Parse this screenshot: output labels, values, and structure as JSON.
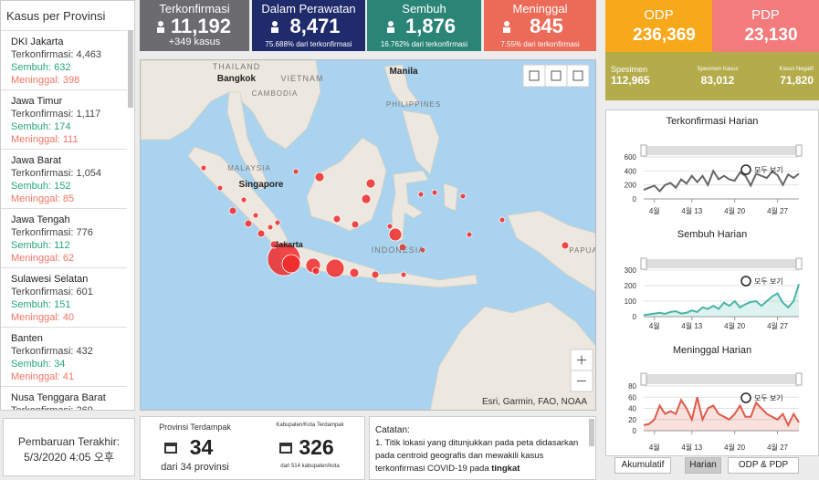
{
  "sidebar": {
    "title": "Kasus per Provinsi",
    "provinces": [
      {
        "name": "DKI Jakarta",
        "confirmed": "Terkonfirmasi: 4,463",
        "recovered": "Sembuh: 632",
        "deaths": "Meninggal: 398"
      },
      {
        "name": "Jawa Timur",
        "confirmed": "Terkonfirmasi: 1,117",
        "recovered": "Sembuh: 174",
        "deaths": "Meninggal: 111"
      },
      {
        "name": "Jawa Barat",
        "confirmed": "Terkonfirmasi: 1,054",
        "recovered": "Sembuh: 152",
        "deaths": "Meninggal: 85"
      },
      {
        "name": "Jawa Tengah",
        "confirmed": "Terkonfirmasi: 776",
        "recovered": "Sembuh: 112",
        "deaths": "Meninggal: 62"
      },
      {
        "name": "Sulawesi Selatan",
        "confirmed": "Terkonfirmasi: 601",
        "recovered": "Sembuh: 151",
        "deaths": "Meninggal: 40"
      },
      {
        "name": "Banten",
        "confirmed": "Terkonfirmasi: 432",
        "recovered": "Sembuh: 34",
        "deaths": "Meninggal: 41"
      },
      {
        "name": "Nusa Tenggara Barat",
        "confirmed": "Terkonfirmasi: 269"
      }
    ]
  },
  "update": {
    "label": "Pembaruan Terakhir:",
    "datetime": "5/3/2020 4:05 오후"
  },
  "stats": [
    {
      "label": "Terkonfirmasi",
      "value": "11,192",
      "sub": "+349 kasus"
    },
    {
      "label": "Dalam Perawatan",
      "value": "8,471",
      "sub": "75.688% dari terkonfirmasi"
    },
    {
      "label": "Sembuh",
      "value": "1,876",
      "sub": "16.762% dari terkonfirmasi"
    },
    {
      "label": "Meninggal",
      "value": "845",
      "sub": "7.55% dari terkonfirmasi"
    }
  ],
  "monitoring": [
    {
      "label": "ODP",
      "value": "236,369"
    },
    {
      "label": "PDP",
      "value": "23,130"
    }
  ],
  "specimens": [
    {
      "label": "Spesimen",
      "value": "112,965"
    },
    {
      "label": "Spesimen Kasus",
      "value": "83,012"
    },
    {
      "label": "Kasus Negatif",
      "value": "71,820"
    }
  ],
  "map": {
    "labels": [
      "THAILAND",
      "Bangkok",
      "VIETNAM",
      "CAMBODIA",
      "Manila",
      "PHILIPPINES",
      "MALAYSIA",
      "Singapore",
      "INDONESIA",
      "PAPUA",
      "Jakarta"
    ],
    "attribution": "Esri, Garmin, FAO, NOAA"
  },
  "affected": [
    {
      "label": "Provinsi Terdampak",
      "value": "34",
      "sub": "dari 34 provinsi"
    },
    {
      "label": "Kabupaten/Kota Terdampak",
      "value": "326",
      "sub": "dari 514 kabupaten/kota"
    }
  ],
  "notes": {
    "title": "Catatan:",
    "body": "1. Titik lokasi yang ditunjukkan pada peta didasarkan pada centroid geografis dan mewakili kasus terkonfirmasi COVID-19 pada",
    "bold": "tingkat"
  },
  "tabs": [
    "Akumulatif",
    "Harian",
    "ODP & PDP"
  ],
  "chart_data": [
    {
      "type": "line",
      "title": "Terkonfirmasi Harian",
      "color": "#666666",
      "zoom_label": "모두 보기",
      "values": [
        130,
        160,
        190,
        110,
        200,
        230,
        160,
        280,
        220,
        330,
        240,
        330,
        200,
        400,
        280,
        330,
        280,
        260,
        380,
        330,
        190,
        360,
        330,
        300,
        390,
        340,
        200,
        350,
        300,
        360
      ],
      "xlim": [
        0,
        29
      ],
      "xticks": [
        {
          "value": 2,
          "label": "4월"
        },
        {
          "value": 9,
          "label": "4월 13"
        },
        {
          "value": 17,
          "label": "4월 20"
        },
        {
          "value": 25,
          "label": "4월 27"
        }
      ],
      "ylim": [
        0,
        600
      ],
      "yticks": [
        0,
        200,
        400,
        600
      ],
      "grid": true
    },
    {
      "type": "line",
      "title": "Sembuh Harian",
      "color": "#47b5a7",
      "zoom_label": "모두 보기",
      "values": [
        10,
        15,
        20,
        25,
        18,
        30,
        35,
        20,
        25,
        40,
        30,
        60,
        50,
        70,
        50,
        90,
        70,
        100,
        60,
        80,
        95,
        100,
        70,
        100,
        130,
        150,
        90,
        60,
        100,
        210
      ],
      "xlim": [
        0,
        29
      ],
      "xticks": [
        {
          "value": 2,
          "label": "4월"
        },
        {
          "value": 9,
          "label": "4월 13"
        },
        {
          "value": 17,
          "label": "4월 20"
        },
        {
          "value": 25,
          "label": "4월 27"
        }
      ],
      "ylim": [
        0,
        300
      ],
      "yticks": [
        0,
        100,
        200,
        300
      ],
      "grid": true
    },
    {
      "type": "line",
      "title": "Meninggal Harian",
      "color": "#e05a4a",
      "zoom_label": "모두 보기",
      "values": [
        10,
        12,
        20,
        45,
        30,
        35,
        30,
        55,
        40,
        20,
        60,
        20,
        40,
        45,
        30,
        25,
        20,
        30,
        45,
        25,
        25,
        50,
        40,
        30,
        25,
        20,
        30,
        10,
        30,
        15
      ],
      "xlim": [
        0,
        29
      ],
      "xticks": [
        {
          "value": 2,
          "label": "4월"
        },
        {
          "value": 9,
          "label": "4월 13"
        },
        {
          "value": 17,
          "label": "4월 20"
        },
        {
          "value": 25,
          "label": "4월 27"
        }
      ],
      "ylim": [
        0,
        80
      ],
      "yticks": [
        0,
        20,
        40,
        60,
        80
      ],
      "grid": true
    }
  ]
}
